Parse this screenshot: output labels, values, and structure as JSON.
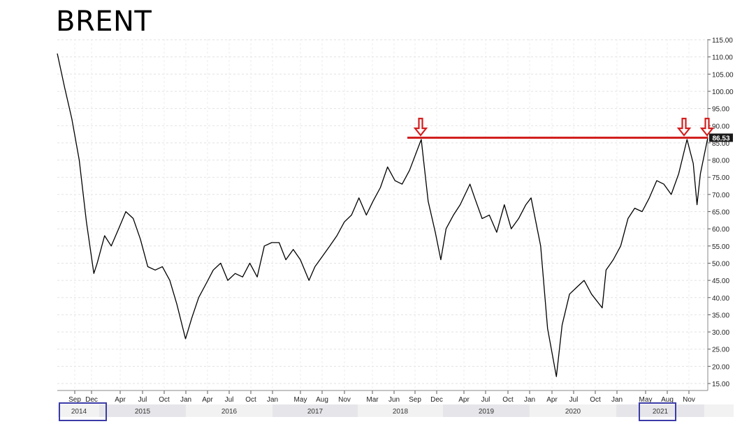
{
  "title": "BRENT",
  "chart_data": {
    "type": "line",
    "title": "BRENT",
    "xlabel": "",
    "ylabel": "",
    "ylim": [
      13,
      117
    ],
    "y_ticks": [
      "115.00",
      "110.00",
      "105.00",
      "100.00",
      "95.00",
      "90.00",
      "85.00",
      "80.00",
      "75.00",
      "70.00",
      "65.00",
      "60.00",
      "55.00",
      "50.00",
      "45.00",
      "40.00",
      "35.00",
      "30.00",
      "25.00",
      "20.00",
      "15.00"
    ],
    "x_ticks": [
      "Sep",
      "Dec",
      "Apr",
      "Jul",
      "Oct",
      "Jan",
      "Apr",
      "Jul",
      "Oct",
      "Jan",
      "May",
      "Aug",
      "Nov",
      "Mar",
      "Jun",
      "Sep",
      "Dec",
      "Apr",
      "Jul",
      "Oct",
      "Jan",
      "Apr",
      "Jul",
      "Oct",
      "Jan",
      "May",
      "Aug",
      "Nov"
    ],
    "years": [
      "2014",
      "2015",
      "2016",
      "2017",
      "2018",
      "2019",
      "2020",
      "2021"
    ],
    "highlighted_years": [
      "2014",
      "2021"
    ],
    "last_value_label": "86.53",
    "resistance_level": 86.5,
    "grid": true,
    "colors": {
      "series": "#000000",
      "resistance": "#d21f1f",
      "arrow": "#d21f1f",
      "highlight_box": "#3b3ba8"
    },
    "series": [
      {
        "x": [
          "2014-08-01",
          "2014-09-01",
          "2014-10-01",
          "2014-11-01",
          "2014-12-01",
          "2015-01-01",
          "2015-01-15",
          "2015-02-15",
          "2015-03-15",
          "2015-04-15",
          "2015-05-15",
          "2015-06-15",
          "2015-07-15",
          "2015-08-15",
          "2015-09-15",
          "2015-10-15",
          "2015-11-15",
          "2015-12-15",
          "2016-01-20",
          "2016-02-15",
          "2016-03-15",
          "2016-04-15",
          "2016-05-15",
          "2016-06-15",
          "2016-07-15",
          "2016-08-15",
          "2016-09-15",
          "2016-10-15",
          "2016-11-15",
          "2016-12-15",
          "2017-01-15",
          "2017-02-15",
          "2017-03-15",
          "2017-04-15",
          "2017-05-15",
          "2017-06-20",
          "2017-07-15",
          "2017-08-15",
          "2017-09-15",
          "2017-10-15",
          "2017-11-15",
          "2017-12-15",
          "2018-01-15",
          "2018-02-15",
          "2018-03-15",
          "2018-04-15",
          "2018-05-15",
          "2018-06-15",
          "2018-07-15",
          "2018-08-15",
          "2018-10-03",
          "2018-11-01",
          "2018-12-01",
          "2018-12-24",
          "2019-01-15",
          "2019-02-15",
          "2019-03-15",
          "2019-04-25",
          "2019-05-15",
          "2019-06-15",
          "2019-07-15",
          "2019-08-15",
          "2019-09-16",
          "2019-10-15",
          "2019-11-15",
          "2019-12-15",
          "2020-01-06",
          "2020-02-15",
          "2020-03-15",
          "2020-04-21",
          "2020-05-15",
          "2020-06-15",
          "2020-07-15",
          "2020-08-15",
          "2020-09-15",
          "2020-10-30",
          "2020-11-15",
          "2020-12-15",
          "2021-01-15",
          "2021-02-15",
          "2021-03-15",
          "2021-04-15",
          "2021-05-15",
          "2021-06-15",
          "2021-07-15",
          "2021-08-15",
          "2021-09-15",
          "2021-10-20",
          "2021-11-15",
          "2021-12-01",
          "2021-12-15",
          "2022-01-15"
        ],
        "values": [
          111,
          101,
          92,
          80,
          62,
          47,
          50,
          58,
          55,
          60,
          65,
          63,
          57,
          49,
          48,
          49,
          45,
          38,
          28,
          34,
          40,
          44,
          48,
          50,
          45,
          47,
          46,
          50,
          46,
          55,
          56,
          56,
          51,
          54,
          51,
          45,
          49,
          52,
          55,
          58,
          62,
          64,
          69,
          64,
          68,
          72,
          78,
          74,
          73,
          77,
          86,
          68,
          59,
          51,
          60,
          64,
          67,
          73,
          69,
          63,
          64,
          59,
          67,
          60,
          63,
          67,
          69,
          55,
          31,
          17,
          32,
          41,
          43,
          45,
          41,
          37,
          48,
          51,
          55,
          63,
          66,
          65,
          69,
          74,
          73,
          70,
          76,
          86,
          79,
          67,
          76,
          86.53
        ]
      }
    ]
  }
}
